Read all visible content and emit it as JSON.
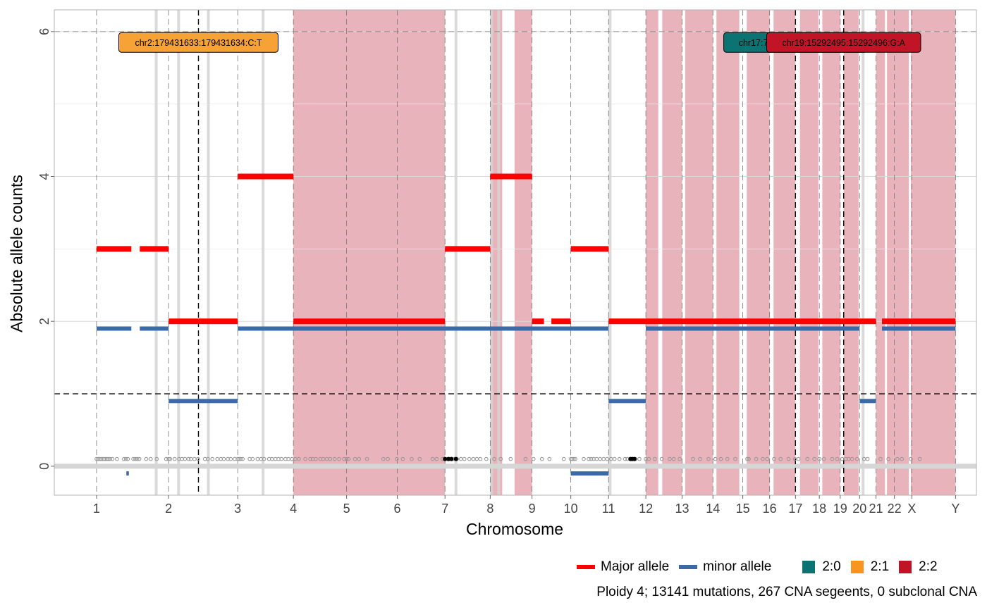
{
  "chart_data": {
    "type": "genome-cna-plot",
    "xlabel": "Chromosome",
    "ylabel": "Absolute allele counts",
    "ylim": [
      -0.4,
      6.3
    ],
    "y_ticks": [
      0,
      2,
      4,
      6
    ],
    "chromosomes": [
      "1",
      "2",
      "3",
      "4",
      "5",
      "6",
      "7",
      "8",
      "9",
      "10",
      "11",
      "12",
      "13",
      "14",
      "15",
      "16",
      "17",
      "18",
      "19",
      "20",
      "21",
      "22",
      "X",
      "Y"
    ],
    "x_tick_positions": [
      1,
      2.45,
      3.84,
      4.96,
      6.03,
      7.05,
      8.01,
      8.92,
      9.76,
      10.54,
      11.3,
      12.05,
      12.78,
      13.4,
      14.0,
      14.54,
      15.06,
      15.54,
      15.96,
      16.35,
      16.68,
      17.05,
      17.4,
      18.28
    ],
    "x_range": [
      0.15,
      18.7
    ],
    "chrom_boundaries": [
      1,
      2.45,
      3.84,
      4.96,
      6.03,
      7.05,
      8.01,
      8.92,
      9.76,
      10.54,
      11.3,
      12.05,
      12.78,
      13.4,
      14.0,
      14.54,
      15.06,
      15.54,
      15.96,
      16.35,
      16.68,
      17.05,
      17.4,
      18.28
    ],
    "hlines": [
      6,
      1
    ],
    "vlines_driver": [
      3.05,
      15.06,
      16.03
    ],
    "shaded_regions": [
      [
        4.96,
        8.01
      ],
      [
        8.92,
        9.16
      ],
      [
        9.41,
        9.76
      ],
      [
        12.05,
        12.3
      ],
      [
        12.38,
        12.78
      ],
      [
        12.84,
        13.4
      ],
      [
        13.47,
        13.93
      ],
      [
        14.08,
        14.54
      ],
      [
        14.62,
        15.06
      ],
      [
        15.15,
        15.52
      ],
      [
        15.6,
        15.96
      ],
      [
        16.03,
        16.33
      ],
      [
        16.68,
        16.86
      ],
      [
        16.9,
        17.34
      ],
      [
        17.38,
        18.28
      ]
    ],
    "grey_bands": [
      2.2,
      2.65,
      3.25,
      4.35,
      8.23,
      8.95,
      9.09,
      11.33,
      16.42
    ],
    "major_allele_segments": [
      {
        "x": [
          1.0,
          1.7
        ],
        "y": 3
      },
      {
        "x": [
          1.87,
          2.45
        ],
        "y": 3
      },
      {
        "x": [
          2.45,
          3.84
        ],
        "y": 2
      },
      {
        "x": [
          3.84,
          4.96
        ],
        "y": 4
      },
      {
        "x": [
          4.96,
          8.01
        ],
        "y": 2
      },
      {
        "x": [
          8.01,
          8.92
        ],
        "y": 3
      },
      {
        "x": [
          8.92,
          9.76
        ],
        "y": 4
      },
      {
        "x": [
          9.76,
          10.0
        ],
        "y": 2
      },
      {
        "x": [
          10.15,
          10.54
        ],
        "y": 2
      },
      {
        "x": [
          10.54,
          11.3
        ],
        "y": 3
      },
      {
        "x": [
          11.3,
          16.68
        ],
        "y": 2
      },
      {
        "x": [
          16.8,
          18.28
        ],
        "y": 2
      }
    ],
    "minor_allele_segments": [
      {
        "x": [
          1.0,
          1.7
        ],
        "y": 1.9
      },
      {
        "x": [
          1.87,
          2.45
        ],
        "y": 1.9
      },
      {
        "x": [
          2.45,
          3.84
        ],
        "y": 0.9
      },
      {
        "x": [
          3.84,
          11.3
        ],
        "y": 1.9
      },
      {
        "x": [
          11.3,
          12.05
        ],
        "y": 0.9
      },
      {
        "x": [
          12.05,
          16.35
        ],
        "y": 1.9
      },
      {
        "x": [
          16.35,
          16.68
        ],
        "y": 0.9
      },
      {
        "x": [
          16.8,
          18.28
        ],
        "y": 1.9
      },
      {
        "x": [
          10.54,
          11.3
        ],
        "y": -0.1
      },
      {
        "x": [
          1.6,
          1.65
        ],
        "y": -0.1
      }
    ],
    "mutation_points_y": 0.1,
    "mutation_points_x": [
      1.0,
      1.03,
      1.06,
      1.09,
      1.12,
      1.15,
      1.18,
      1.21,
      1.24,
      1.27,
      1.32,
      1.41,
      1.55,
      1.59,
      1.63,
      1.74,
      1.78,
      1.82,
      1.86,
      2.0,
      2.09,
      2.21,
      2.4,
      2.45,
      2.48,
      2.57,
      2.66,
      2.72,
      2.78,
      2.85,
      2.9,
      2.97,
      3.04,
      3.18,
      3.24,
      3.33,
      3.43,
      3.5,
      3.56,
      3.64,
      3.7,
      3.78,
      3.84,
      3.87,
      3.9,
      3.94,
      4.08,
      4.14,
      4.24,
      4.31,
      4.37,
      4.47,
      4.53,
      4.6,
      4.66,
      4.72,
      4.8,
      4.86,
      4.93,
      5.0,
      5.07,
      5.2,
      5.3,
      5.35,
      5.41,
      5.5,
      5.56,
      5.63,
      5.7,
      5.79,
      5.88,
      5.98,
      6.03,
      6.07,
      6.2,
      6.28,
      6.44,
      6.77,
      6.86,
      7.04,
      7.16,
      7.34,
      7.5,
      7.76,
      7.84,
      7.96,
      8.03,
      8.07,
      8.1,
      8.14,
      8.2,
      8.25,
      8.33,
      8.4,
      8.5,
      8.58,
      8.65,
      8.72,
      8.84,
      9.0,
      9.13,
      9.33,
      9.63,
      9.79,
      9.96,
      10.11,
      10.4,
      10.54,
      10.57,
      10.6,
      10.63,
      10.8,
      10.9,
      10.95,
      11.0,
      11.06,
      11.13,
      11.2,
      11.27,
      11.35,
      11.42,
      11.52,
      11.63,
      11.68,
      11.77,
      11.84,
      11.92,
      12.05,
      12.11,
      12.23,
      12.37,
      12.53,
      12.61,
      12.73,
      13.0,
      13.14,
      13.31,
      13.45,
      13.56,
      13.69,
      13.85,
      14.09,
      14.12,
      14.27,
      14.4,
      14.49,
      14.63,
      14.76,
      14.92,
      15.05,
      15.12,
      15.3,
      15.44,
      15.54,
      15.63,
      15.8,
      15.9,
      16.0,
      16.07,
      16.13,
      16.2,
      16.3,
      16.44,
      16.51,
      16.77,
      16.93,
      17.11,
      17.2,
      17.38,
      17.56
    ],
    "driver_points_x": [
      8.01,
      8.08,
      8.14,
      8.23,
      11.74,
      11.78,
      11.82
    ],
    "driver_labels": [
      {
        "text": "chr2:179431633:179431634:C:T",
        "x": 3.05,
        "y": 6,
        "color": "#F7A234",
        "dominated_by": "2:1"
      },
      {
        "text": "chr17:7577106:7577107:G:C",
        "x": 15.06,
        "y": 6,
        "color": "#0C7373",
        "dominated_by": "2:0",
        "text_color": "#000000"
      },
      {
        "text": "chr19:15292495:15292496:G:A",
        "x": 16.03,
        "y": 6,
        "color": "#C11426",
        "dominated_by": "2:2"
      }
    ],
    "colors": {
      "major": "#FF0000",
      "minor": "#3A6BA8",
      "shade": "#E8B3BA",
      "grey_point": "#9A9A9A",
      "driver_point": "#000000",
      "cn_2_0": "#0C7373",
      "cn_2_1": "#F7961E",
      "cn_2_2": "#C11426"
    }
  },
  "legend": {
    "major_label": "Major allele",
    "minor_label": "minor allele",
    "cn_labels": [
      "2:0",
      "2:1",
      "2:2"
    ]
  },
  "caption": "Ploidy 4; 13141 mutations, 267 CNA segeents, 0 subclonal CNA"
}
